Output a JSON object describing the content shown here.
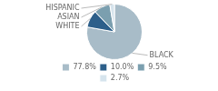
{
  "chart_data": {
    "type": "pie",
    "categories": [
      "BLACK",
      "WHITE",
      "ASIAN",
      "HISPANIC"
    ],
    "values": [
      77.8,
      10.0,
      9.5,
      2.7
    ],
    "value_labels": [
      "77.8%",
      "10.0%",
      "9.5%",
      "2.7%"
    ],
    "colors": [
      "#a8bcc8",
      "#2d5f8a",
      "#7b9faf",
      "#d6e4ed"
    ],
    "legend": "bottom"
  }
}
